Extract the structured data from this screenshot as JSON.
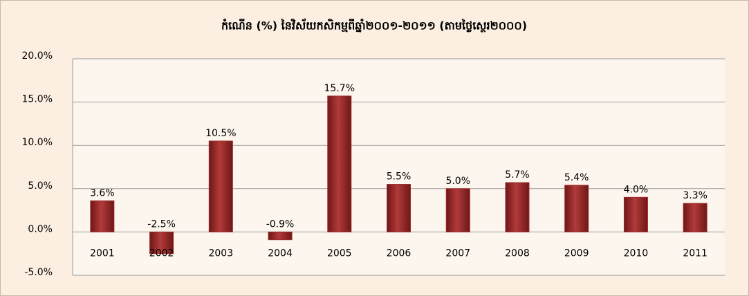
{
  "chart_data": {
    "type": "bar",
    "title": "កំណើន (%) នៃវិស័យកសិកម្មពីឆ្នាំ២០០១-២០១១ (តាមថ្លៃស្ថេរ២០០០)",
    "categories": [
      "2001",
      "2002",
      "2003",
      "2004",
      "2005",
      "2006",
      "2007",
      "2008",
      "2009",
      "2010",
      "2011"
    ],
    "values": [
      3.6,
      -2.5,
      10.5,
      -0.9,
      15.7,
      5.5,
      5.0,
      5.7,
      5.4,
      4.0,
      3.3
    ],
    "value_labels": [
      "3.6%",
      "-2.5%",
      "10.5%",
      "-0.9%",
      "15.7%",
      "5.5%",
      "5.0%",
      "5.7%",
      "5.4%",
      "4.0%",
      "3.3%"
    ],
    "color": "#9b2b2b",
    "ylim": [
      -5,
      20
    ],
    "yticks": [
      {
        "value": -5,
        "label": "-5.0%"
      },
      {
        "value": 0,
        "label": "0.0%"
      },
      {
        "value": 5,
        "label": "5.0%"
      },
      {
        "value": 10,
        "label": "10.0%"
      },
      {
        "value": 15,
        "label": "15.0%"
      },
      {
        "value": 20,
        "label": "20.0%"
      }
    ],
    "grid": true
  }
}
